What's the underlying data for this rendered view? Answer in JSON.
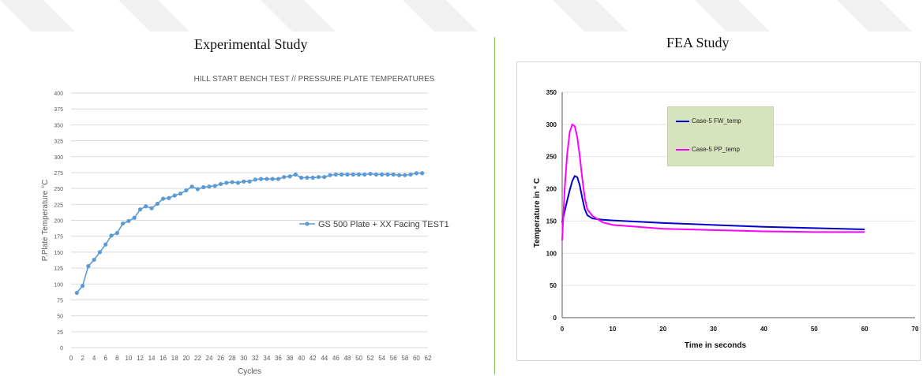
{
  "panels": {
    "left_title": "Experimental Study",
    "right_title": "FEA Study"
  },
  "chart_data": [
    {
      "type": "line",
      "title": "HILL START BENCH TEST // PRESSURE PLATE TEMPERATURES",
      "xlabel": "Cycles",
      "ylabel": "P.Plate Temperature °C",
      "xlim": [
        0,
        62
      ],
      "ylim": [
        0,
        400
      ],
      "xticks": [
        0,
        2,
        4,
        6,
        8,
        10,
        12,
        14,
        16,
        18,
        20,
        22,
        24,
        26,
        28,
        30,
        32,
        34,
        36,
        38,
        40,
        42,
        44,
        46,
        48,
        50,
        52,
        54,
        56,
        58,
        60,
        62
      ],
      "yticks": [
        0,
        25,
        50,
        75,
        100,
        125,
        150,
        175,
        200,
        225,
        250,
        275,
        300,
        325,
        350,
        375,
        400
      ],
      "grid": true,
      "legend_position": "right",
      "color": "#5b9bd5",
      "series": [
        {
          "name": "GS 500 Plate + XX Facing TEST1",
          "x": [
            1,
            2,
            3,
            4,
            5,
            6,
            7,
            8,
            9,
            10,
            11,
            12,
            13,
            14,
            15,
            16,
            17,
            18,
            19,
            20,
            21,
            22,
            23,
            24,
            25,
            26,
            27,
            28,
            29,
            30,
            31,
            32,
            33,
            34,
            35,
            36,
            37,
            38,
            39,
            40,
            41,
            42,
            43,
            44,
            45,
            46,
            47,
            48,
            49,
            50,
            51,
            52,
            53,
            54,
            55,
            56,
            57,
            58,
            59,
            60,
            61
          ],
          "y": [
            86,
            97,
            128,
            138,
            150,
            162,
            176,
            180,
            195,
            199,
            204,
            217,
            222,
            219,
            226,
            234,
            235,
            239,
            242,
            247,
            253,
            249,
            252,
            253,
            254,
            257,
            259,
            260,
            259,
            261,
            261,
            264,
            265,
            265,
            265,
            265,
            268,
            269,
            272,
            267,
            267,
            267,
            268,
            268,
            271,
            272,
            272,
            272,
            272,
            272,
            272,
            273,
            272,
            272,
            272,
            272,
            271,
            271,
            272,
            274,
            274
          ]
        }
      ]
    },
    {
      "type": "line",
      "title": "",
      "xlabel": "Time in seconds",
      "ylabel": "Temperature in ° C",
      "xlim": [
        0,
        70
      ],
      "ylim": [
        0,
        350
      ],
      "xticks": [
        0,
        10,
        20,
        30,
        40,
        50,
        60,
        70
      ],
      "yticks": [
        0,
        50,
        100,
        150,
        200,
        250,
        300,
        350
      ],
      "grid": true,
      "legend_position": "top-center",
      "series": [
        {
          "name": "Case-5 FW_temp",
          "color": "#0000cc",
          "x": [
            0,
            0.5,
            1,
            1.5,
            2,
            2.5,
            3,
            3.5,
            4,
            4.5,
            5,
            6,
            7,
            8,
            10,
            15,
            20,
            30,
            40,
            50,
            60
          ],
          "y": [
            148,
            165,
            182,
            198,
            212,
            220,
            218,
            205,
            185,
            168,
            159,
            154,
            153,
            152,
            151,
            149,
            147,
            144,
            141,
            139,
            137
          ]
        },
        {
          "name": "Case-5 PP_temp",
          "color": "#ff00ff",
          "x": [
            0,
            0.5,
            1,
            1.5,
            2,
            2.5,
            3,
            3.5,
            4,
            4.5,
            5,
            6,
            7,
            8,
            10,
            15,
            20,
            30,
            40,
            50,
            60
          ],
          "y": [
            120,
            200,
            255,
            288,
            300,
            297,
            280,
            250,
            215,
            185,
            168,
            158,
            153,
            148,
            144,
            141,
            138,
            136,
            134,
            133,
            133
          ]
        }
      ]
    }
  ]
}
